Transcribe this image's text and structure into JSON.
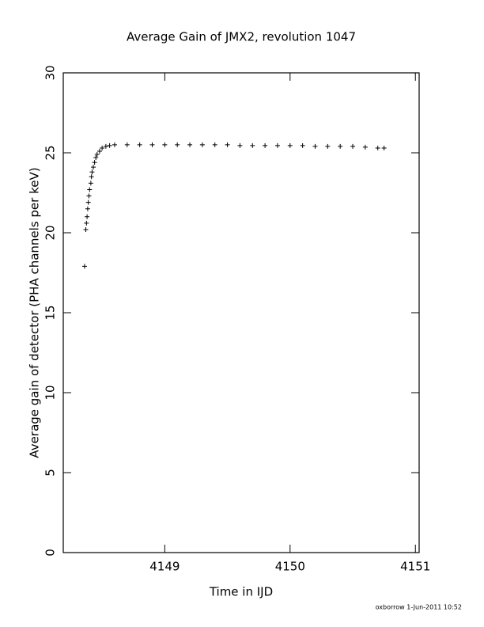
{
  "chart_data": {
    "type": "scatter",
    "title": "Average Gain of JMX2, revolution 1047",
    "x_label": "Time in IJD",
    "y_label": "Average gain of detector (PHA channels per keV)",
    "footer": "oxborrow  1-Jun-2011 10:52",
    "marker": "+",
    "color": "#000000",
    "xlim": [
      4148.19,
      4151.03
    ],
    "ylim": [
      0,
      30
    ],
    "xticks": [
      4149,
      4150,
      4151
    ],
    "yticks": [
      0,
      5,
      10,
      15,
      20,
      25,
      30
    ],
    "x": [
      4148.36,
      4148.37,
      4148.375,
      4148.38,
      4148.385,
      4148.39,
      4148.395,
      4148.4,
      4148.41,
      4148.415,
      4148.42,
      4148.43,
      4148.44,
      4148.45,
      4148.46,
      4148.48,
      4148.5,
      4148.53,
      4148.56,
      4148.6,
      4148.7,
      4148.8,
      4148.9,
      4149.0,
      4149.1,
      4149.2,
      4149.3,
      4149.4,
      4149.5,
      4149.6,
      4149.7,
      4149.8,
      4149.9,
      4150.0,
      4150.1,
      4150.2,
      4150.3,
      4150.4,
      4150.5,
      4150.6,
      4150.7,
      4150.75
    ],
    "values": [
      17.9,
      20.2,
      20.6,
      21.0,
      21.5,
      21.9,
      22.3,
      22.7,
      23.1,
      23.5,
      23.8,
      24.1,
      24.4,
      24.7,
      24.9,
      25.1,
      25.3,
      25.4,
      25.45,
      25.5,
      25.5,
      25.5,
      25.5,
      25.5,
      25.5,
      25.5,
      25.5,
      25.5,
      25.5,
      25.45,
      25.45,
      25.45,
      25.45,
      25.45,
      25.45,
      25.4,
      25.4,
      25.4,
      25.4,
      25.35,
      25.3,
      25.3
    ]
  }
}
